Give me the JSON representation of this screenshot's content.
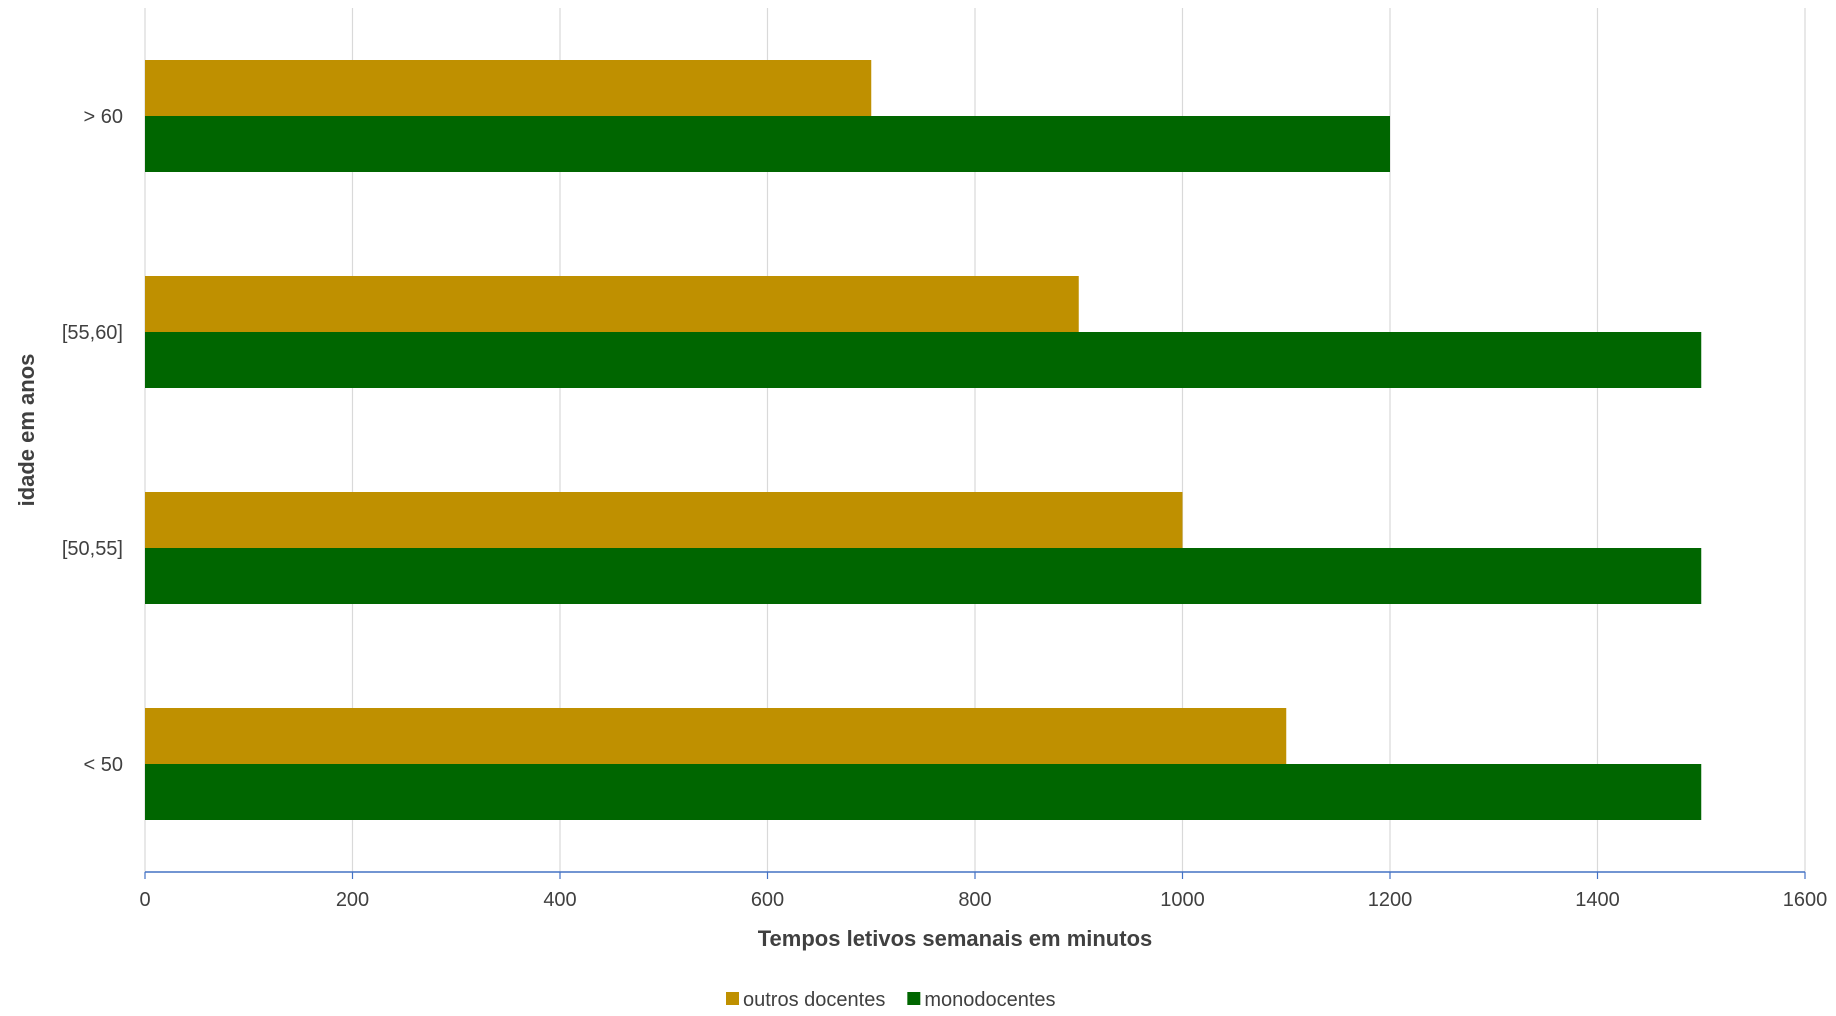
{
  "chart_data": {
    "type": "bar",
    "orientation": "horizontal",
    "categories": [
      "< 50",
      "[50,55]",
      "[55,60]",
      "> 60"
    ],
    "series": [
      {
        "name": "outros docentes",
        "values": [
          1100,
          1000,
          900,
          700
        ],
        "color": "#bf9000"
      },
      {
        "name": "monodocentes",
        "values": [
          1500,
          1500,
          1500,
          1200
        ],
        "color": "#006600"
      }
    ],
    "xlabel": "Tempos letivos semanais em minutos",
    "ylabel": "idade em anos",
    "xlim": [
      0,
      1600
    ],
    "xticks": [
      "0",
      "200",
      "400",
      "600",
      "800",
      "1000",
      "1200",
      "1400",
      "1600"
    ],
    "grid": "vertical",
    "legend_position": "bottom"
  }
}
